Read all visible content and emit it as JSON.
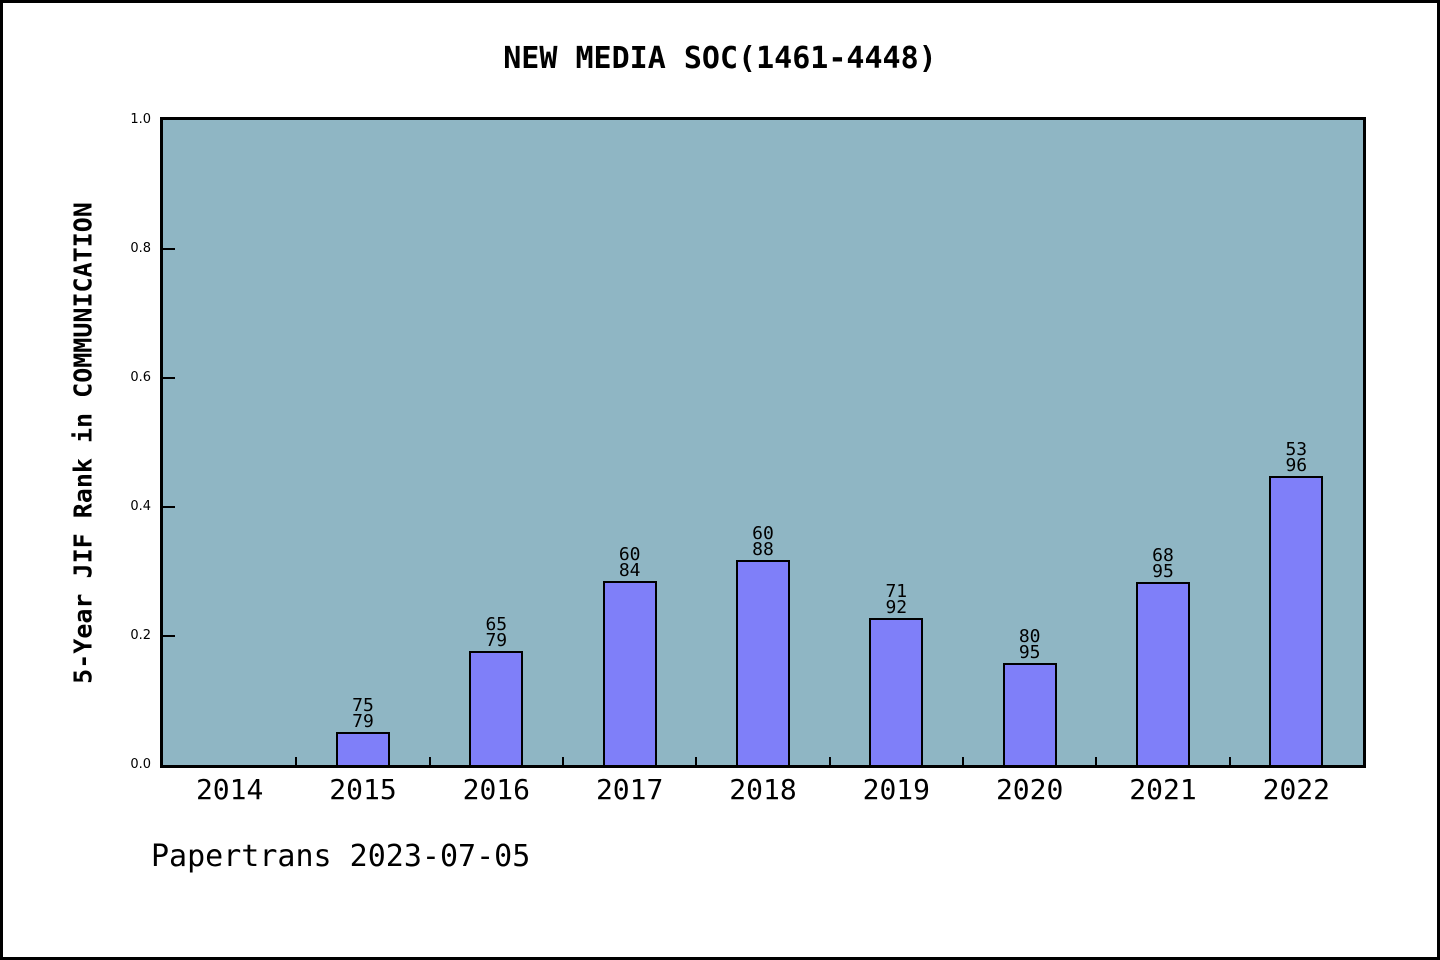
{
  "title": "NEW MEDIA SOC(1461-4448)",
  "footer": "Papertrans 2023-07-05",
  "chart_data": {
    "type": "bar",
    "title": "NEW MEDIA SOC(1461-4448)",
    "xlabel": "",
    "ylabel": "5-Year JIF Rank in COMMUNICATION",
    "ylim": [
      0.0,
      1.0
    ],
    "yticks": [
      0.0,
      0.2,
      0.4,
      0.6,
      0.8,
      1.0
    ],
    "grid": false,
    "legend": false,
    "categories": [
      "2014",
      "2015",
      "2016",
      "2017",
      "2018",
      "2019",
      "2020",
      "2021",
      "2022"
    ],
    "bars": [
      {
        "category": "2015",
        "rank": 75,
        "total": 79,
        "value": 0.0506
      },
      {
        "category": "2016",
        "rank": 65,
        "total": 79,
        "value": 0.1772
      },
      {
        "category": "2017",
        "rank": 60,
        "total": 84,
        "value": 0.2857
      },
      {
        "category": "2018",
        "rank": 60,
        "total": 88,
        "value": 0.3182
      },
      {
        "category": "2019",
        "rank": 71,
        "total": 92,
        "value": 0.2283
      },
      {
        "category": "2020",
        "rank": 80,
        "total": 95,
        "value": 0.1579
      },
      {
        "category": "2021",
        "rank": 68,
        "total": 95,
        "value": 0.2842
      },
      {
        "category": "2022",
        "rank": 53,
        "total": 96,
        "value": 0.4479
      }
    ],
    "colors": {
      "plot_background": "#8FB6C4",
      "bar_fill": "#7F7FF9",
      "bar_edge": "#000000",
      "axis": "#000000",
      "figure_background": "#FFFFFF",
      "frame_border": "#000000"
    }
  }
}
